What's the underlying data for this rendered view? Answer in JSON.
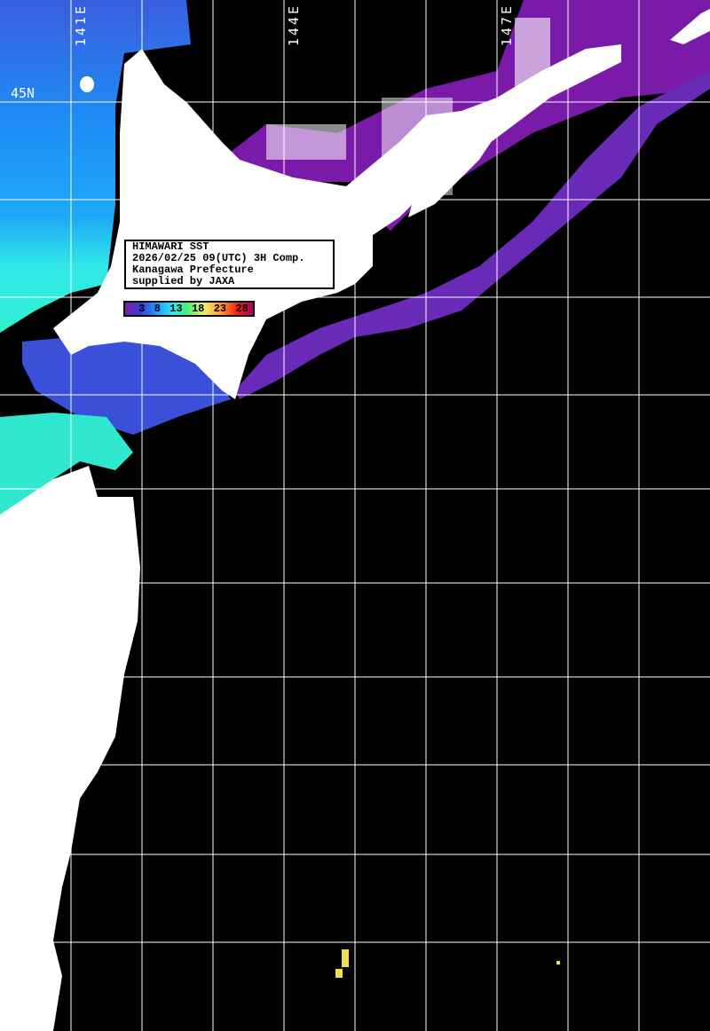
{
  "title_box": {
    "lines": [
      "HIMAWARI SST",
      "2026/02/25 09(UTC) 3H Comp.",
      "Kanagawa Prefecture",
      "supplied by JAXA"
    ]
  },
  "colorbar": {
    "ticks": [
      "3",
      "8",
      "13",
      "18",
      "23",
      "28"
    ],
    "unit_colors": [
      "#7a1fa0",
      "#3c3cd8",
      "#1e9cff",
      "#26f0f0",
      "#40f080",
      "#f0f060",
      "#ff9a30",
      "#f02010",
      "#b00060"
    ]
  },
  "grid": {
    "lon_labels": [
      "141E",
      "144E",
      "147E"
    ],
    "lat_labels": [
      "45N"
    ]
  },
  "colors": {
    "land": "#ffffff",
    "no_data": "#000000",
    "grid": "#ffffff"
  }
}
